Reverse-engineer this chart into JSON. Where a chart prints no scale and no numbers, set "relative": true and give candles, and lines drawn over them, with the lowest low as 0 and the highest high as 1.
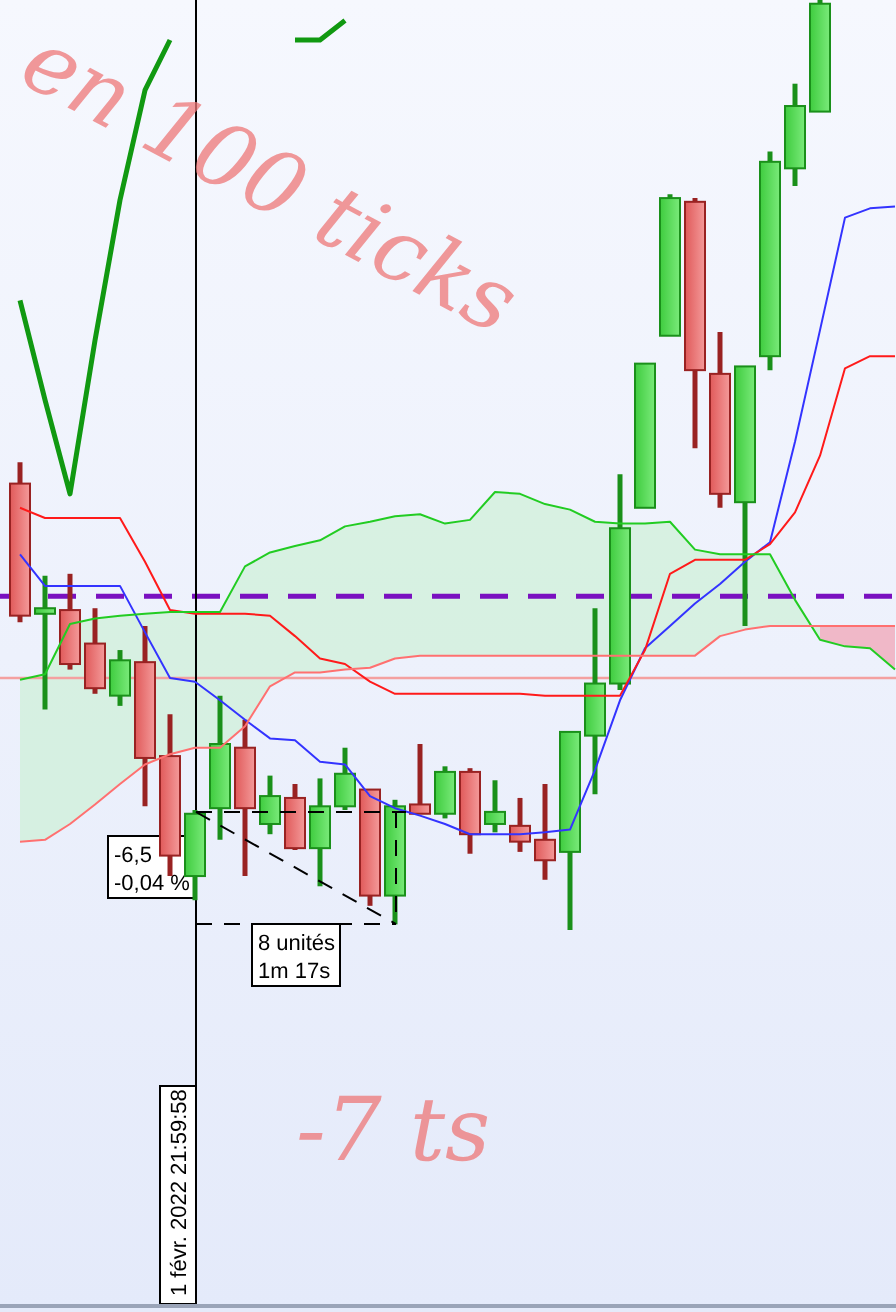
{
  "chart_data": {
    "type": "candlestick",
    "relative": true,
    "categories": [
      null,
      null,
      null,
      null,
      null,
      null,
      null,
      null,
      null,
      null,
      null,
      null,
      null,
      null,
      null,
      null,
      null,
      null,
      null,
      null,
      null,
      null,
      null,
      null,
      null,
      null,
      null,
      null,
      null,
      null,
      null,
      null,
      null,
      null,
      null,
      null
    ],
    "ohlc": [
      [
        0.48,
        0.503,
        0.331,
        0.338
      ],
      [
        0.34,
        0.381,
        0.237,
        0.346
      ],
      [
        0.344,
        0.383,
        0.28,
        0.286
      ],
      [
        0.308,
        0.346,
        0.254,
        0.26
      ],
      [
        0.252,
        0.301,
        0.241,
        0.29
      ],
      [
        0.288,
        0.327,
        0.133,
        0.185
      ],
      [
        0.187,
        0.232,
        0.058,
        0.08
      ],
      [
        0.058,
        0.129,
        0.032,
        0.125
      ],
      [
        0.131,
        0.252,
        0.097,
        0.2
      ],
      [
        0.196,
        0.226,
        0.058,
        0.131
      ],
      [
        0.114,
        0.166,
        0.103,
        0.144
      ],
      [
        0.142,
        0.157,
        0.086,
        0.088
      ],
      [
        0.088,
        0.163,
        0.047,
        0.133
      ],
      [
        0.133,
        0.196,
        0.129,
        0.168
      ],
      [
        0.151,
        0.151,
        0.026,
        0.037
      ],
      [
        0.037,
        0.14,
        0.006,
        0.133
      ],
      [
        0.135,
        0.2,
        0.125,
        0.125
      ],
      [
        0.125,
        0.176,
        0.12,
        0.17
      ],
      [
        0.17,
        0.174,
        0.082,
        0.103
      ],
      [
        0.114,
        0.161,
        0.105,
        0.127
      ],
      [
        0.112,
        0.142,
        0.084,
        0.095
      ],
      [
        0.097,
        0.157,
        0.054,
        0.075
      ],
      [
        0.084,
        0.213,
        0,
        0.213
      ],
      [
        0.209,
        0.346,
        0.146,
        0.265
      ],
      [
        0.265,
        0.49,
        0.258,
        0.432
      ],
      [
        0.454,
        0.609,
        0.454,
        0.609
      ],
      [
        0.639,
        0.791,
        0.639,
        0.787
      ],
      [
        0.783,
        0.787,
        0.518,
        0.602
      ],
      [
        0.598,
        0.643,
        0.454,
        0.469
      ],
      [
        0.46,
        0.606,
        0.327,
        0.606
      ],
      [
        0.617,
        0.837,
        0.602,
        0.826
      ],
      [
        0.819,
        0.91,
        0.8,
        0.886
      ],
      [
        0.88,
        1,
        0.88,
        0.996
      ],
      null,
      null,
      null
    ],
    "series": [
      {
        "type": "line",
        "color": "#3333ff",
        "values": [
          0.404,
          0.37,
          0.37,
          0.37,
          0.37,
          0.32,
          0.271,
          0.267,
          0.247,
          0.226,
          0.206,
          0.204,
          0.181,
          0.178,
          0.144,
          0.131,
          0.123,
          0.114,
          0.103,
          0.103,
          0.103,
          0.105,
          0.108,
          0.172,
          0.247,
          0.303,
          0.327,
          0.351,
          0.372,
          0.396,
          0.417,
          0.525,
          0.645,
          0.766,
          0.776,
          0.778
        ]
      },
      {
        "type": "line",
        "color": "#ff1a1a",
        "values": [
          0.454,
          0.443,
          0.443,
          0.443,
          0.443,
          0.396,
          0.344,
          0.34,
          0.34,
          0.34,
          0.338,
          0.316,
          0.292,
          0.286,
          0.267,
          0.254,
          0.254,
          0.254,
          0.254,
          0.254,
          0.254,
          0.252,
          0.252,
          0.252,
          0.252,
          0.301,
          0.383,
          0.398,
          0.398,
          0.398,
          0.415,
          0.449,
          0.51,
          0.604,
          0.617,
          0.617
        ]
      },
      {
        "type": "line",
        "color": "#22cc22",
        "values": [
          0.269,
          0.275,
          0.329,
          0.335,
          0.338,
          0.34,
          0.342,
          0.342,
          0.342,
          0.391,
          0.406,
          0.413,
          0.419,
          0.434,
          0.439,
          0.445,
          0.447,
          0.437,
          0.441,
          0.471,
          0.469,
          0.458,
          0.452,
          0.439,
          0.437,
          0.437,
          0.439,
          0.409,
          0.404,
          0.404,
          0.404,
          0.355,
          0.312,
          0.305,
          0.303,
          0.28
        ],
        "upper": [
          0.269,
          0.275,
          0.329,
          0.335,
          0.338,
          0.34,
          0.342,
          0.342,
          0.342,
          0.391,
          0.406,
          0.413,
          0.419,
          0.434,
          0.439,
          0.445,
          0.447,
          0.437,
          0.441,
          0.471,
          0.469,
          0.458,
          0.452,
          0.439,
          0.437,
          0.437,
          0.439,
          0.409,
          0.404,
          0.404,
          0.404,
          0.355,
          0.312,
          0.305,
          0.303,
          0.28
        ],
        "lower": [
          0.095,
          0.097,
          0.114,
          0.135,
          0.157,
          0.178,
          0.189,
          0.196,
          0.196,
          0.219,
          0.262,
          0.277,
          0.277,
          0.28,
          0.282,
          0.292,
          0.295,
          0.295,
          0.295,
          0.295,
          0.295,
          0.295,
          0.295,
          0.295,
          0.295,
          0.295,
          0.295,
          0.295,
          0.316,
          0.323,
          0.327,
          0.327,
          0.327,
          0.327,
          0.327,
          0.327
        ]
      },
      {
        "type": "line",
        "color": "#ff7070",
        "values": [
          0.095,
          0.097,
          0.114,
          0.135,
          0.157,
          0.178,
          0.189,
          0.196,
          0.196,
          0.219,
          0.262,
          0.277,
          0.277,
          0.28,
          0.282,
          0.292,
          0.295,
          0.295,
          0.295,
          0.295,
          0.295,
          0.295,
          0.295,
          0.295,
          0.295,
          0.295,
          0.295,
          0.295,
          0.316,
          0.323,
          0.327,
          0.327,
          0.327,
          0.327,
          0.327,
          0.327
        ]
      },
      {
        "type": "line",
        "color": "#119911",
        "values": [
          0.677,
          0.57,
          0.469,
          0.634,
          0.785,
          0.903,
          0.957,
          null,
          null,
          null,
          null,
          0.957,
          0.957,
          0.978,
          null,
          null,
          null,
          null,
          null,
          null,
          null,
          null,
          null,
          null,
          null,
          null,
          null,
          null,
          null,
          null,
          null,
          null,
          null,
          null,
          null,
          null
        ]
      }
    ],
    "ref_lines": [
      {
        "axis": "y",
        "value": 0.359,
        "color": "#7a10c0",
        "line_style": "dashed"
      },
      {
        "axis": "y",
        "value": 0.271,
        "color": "#f4a0a0"
      }
    ],
    "annotations": [
      "-6,5",
      "-0,04 %",
      "8 unités",
      "1m 17s",
      "en 100 ticks",
      "-7 ts",
      "1 févr. 2022 21:59:58"
    ]
  }
}
